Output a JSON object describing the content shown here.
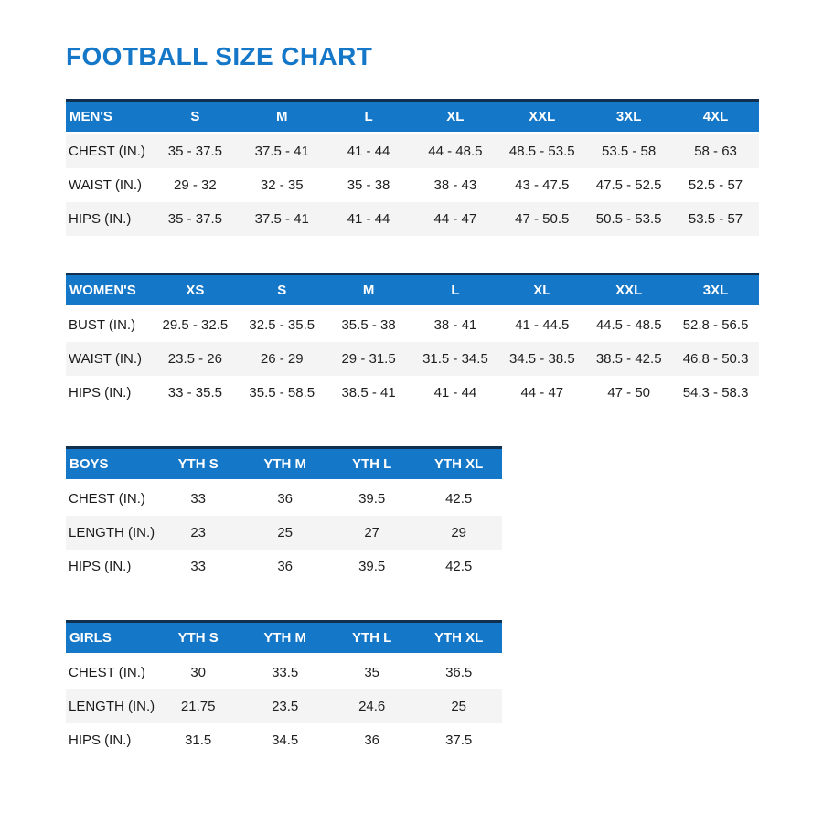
{
  "page": {
    "title": "FOOTBALL SIZE CHART"
  },
  "colors": {
    "title": "#1577c8",
    "header_bg": "#1577c8",
    "header_text": "#ffffff",
    "header_top_border": "#11304f",
    "header_bottom_border": "#1467b0",
    "stripe_bg": "#f4f4f5",
    "row_text": "#1f1f1f",
    "label_text": "#1a1a1a"
  },
  "tables": [
    {
      "name": "mens",
      "header": [
        "MEN'S",
        "S",
        "M",
        "L",
        "XL",
        "XXL",
        "3XL",
        "4XL"
      ],
      "stripe_pattern": [
        "gray",
        "white",
        "gray"
      ],
      "rows": [
        {
          "label": "CHEST (IN.)",
          "values": [
            "35 - 37.5",
            "37.5 - 41",
            "41 - 44",
            "44 - 48.5",
            "48.5 - 53.5",
            "53.5 - 58",
            "58 - 63"
          ]
        },
        {
          "label": "WAIST (IN.)",
          "values": [
            "29 - 32",
            "32 - 35",
            "35 - 38",
            "38 - 43",
            "43 - 47.5",
            "47.5 - 52.5",
            "52.5 - 57"
          ]
        },
        {
          "label": "HIPS (IN.)",
          "values": [
            "35 - 37.5",
            "37.5 - 41",
            "41 - 44",
            "44 - 47",
            "47 - 50.5",
            "50.5 - 53.5",
            "53.5 - 57"
          ]
        }
      ]
    },
    {
      "name": "womens",
      "header": [
        "WOMEN'S",
        "XS",
        "S",
        "M",
        "L",
        "XL",
        "XXL",
        "3XL"
      ],
      "stripe_pattern": [
        "white",
        "gray",
        "white"
      ],
      "rows": [
        {
          "label": "BUST (IN.)",
          "values": [
            "29.5 - 32.5",
            "32.5 - 35.5",
            "35.5 - 38",
            "38 - 41",
            "41 - 44.5",
            "44.5 - 48.5",
            "52.8 - 56.5"
          ]
        },
        {
          "label": "WAIST (IN.)",
          "values": [
            "23.5 - 26",
            "26 - 29",
            "29 - 31.5",
            "31.5 - 34.5",
            "34.5 - 38.5",
            "38.5 - 42.5",
            "46.8 - 50.3"
          ]
        },
        {
          "label": "HIPS (IN.)",
          "values": [
            "33 - 35.5",
            "35.5 - 58.5",
            "38.5 - 41",
            "41 - 44",
            "44 - 47",
            "47 - 50",
            "54.3 - 58.3"
          ]
        }
      ]
    },
    {
      "name": "boys",
      "header": [
        "BOYS",
        "YTH S",
        "YTH M",
        "YTH L",
        "YTH XL"
      ],
      "stripe_pattern": [
        "white",
        "gray",
        "white"
      ],
      "rows": [
        {
          "label": "CHEST (IN.)",
          "values": [
            "33",
            "36",
            "39.5",
            "42.5"
          ]
        },
        {
          "label": "LENGTH (IN.)",
          "values": [
            "23",
            "25",
            "27",
            "29"
          ]
        },
        {
          "label": "HIPS (IN.)",
          "values": [
            "33",
            "36",
            "39.5",
            "42.5"
          ]
        }
      ]
    },
    {
      "name": "girls",
      "header": [
        "GIRLS",
        "YTH S",
        "YTH M",
        "YTH L",
        "YTH XL"
      ],
      "stripe_pattern": [
        "white",
        "gray",
        "white"
      ],
      "rows": [
        {
          "label": "CHEST (IN.)",
          "values": [
            "30",
            "33.5",
            "35",
            "36.5"
          ]
        },
        {
          "label": "LENGTH (IN.)",
          "values": [
            "21.75",
            "23.5",
            "24.6",
            "25"
          ]
        },
        {
          "label": "HIPS (IN.)",
          "values": [
            "31.5",
            "34.5",
            "36",
            "37.5"
          ]
        }
      ]
    }
  ]
}
